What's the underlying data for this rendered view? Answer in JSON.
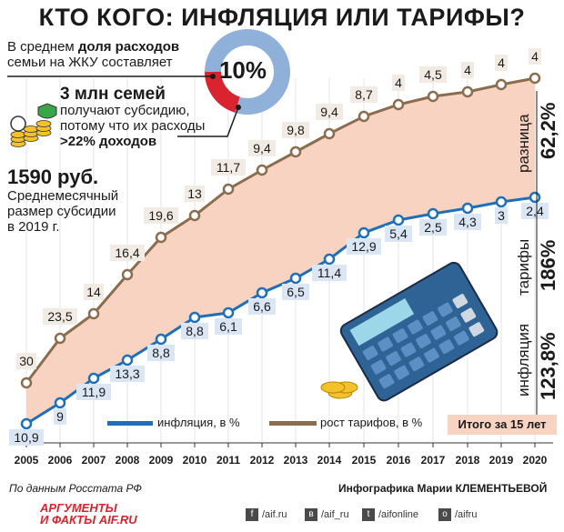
{
  "title": "КТО КОГО: ИНФЛЯЦИЯ ИЛИ ТАРИФЫ?",
  "info_share": {
    "prefix": "В среднем ",
    "bold": "доля расходов",
    "rest": "семьи на ЖКУ составляет",
    "percent": "10%"
  },
  "info_subsidy": {
    "big": "3 млн семей",
    "line1": "получают субсидию,",
    "line2": "потому что их расходы",
    "line3": ">22% доходов"
  },
  "info_amount": {
    "big": "1590 руб.",
    "line1": "Среднемесячный",
    "line2": "размер субсидии",
    "line3": "в 2019 г."
  },
  "side_labels": {
    "diff_pct": "62,2%",
    "diff_label": "разница",
    "tariff_pct": "186%",
    "tariff_label": "тарифы",
    "infl_pct": "123,8%",
    "infl_label": "инфляция"
  },
  "legend": {
    "inflation": "инфляция, в %",
    "tariffs": "рост тарифов, в %",
    "total": "Итого за 15 лет"
  },
  "footer": {
    "source": "По данным Росстата РФ",
    "author": "Инфографика Марии КЛЕМЕНТЬЕВОЙ",
    "logo_line1": "АРГУМЕНТЫ",
    "logo_line2": "И ФАКТЫ AIF.RU",
    "social": [
      {
        "icon": "f",
        "label": "/aif.ru"
      },
      {
        "icon": "в",
        "label": "/aif_ru"
      },
      {
        "icon": "t",
        "label": "/aifonline"
      },
      {
        "icon": "o",
        "label": "/aifru"
      }
    ]
  },
  "colors": {
    "inflation": "#1f6fb8",
    "tariffs": "#8a6d4e",
    "fill": "#f8d3c2",
    "donut_light": "#8fb0d8",
    "donut_red": "#d9232e"
  },
  "chart_data": {
    "type": "line",
    "x": [
      "2005",
      "2006",
      "2007",
      "2008",
      "2009",
      "2010",
      "2011",
      "2012",
      "2013",
      "2014",
      "2015",
      "2016",
      "2017",
      "2018",
      "2019",
      "2020"
    ],
    "series": [
      {
        "name": "рост тарифов, в %",
        "labels": [
          "30",
          "23,5",
          "14",
          "16,4",
          "19,6",
          "13",
          "11,7",
          "9,4",
          "9,8",
          "9,4",
          "8,7",
          "4",
          "4,5",
          "4",
          "4",
          "4"
        ]
      },
      {
        "name": "инфляция, в %",
        "labels": [
          "10,9",
          "9",
          "11,9",
          "13,3",
          "8,8",
          "8,8",
          "6,1",
          "6,6",
          "6,5",
          "11,4",
          "12,9",
          "5,4",
          "2,5",
          "4,3",
          "3",
          "2,4"
        ]
      }
    ],
    "cumulative_growth": {
      "tariffs": 186,
      "inflation": 123.8,
      "difference": 62.2
    },
    "share_donut": 10
  }
}
